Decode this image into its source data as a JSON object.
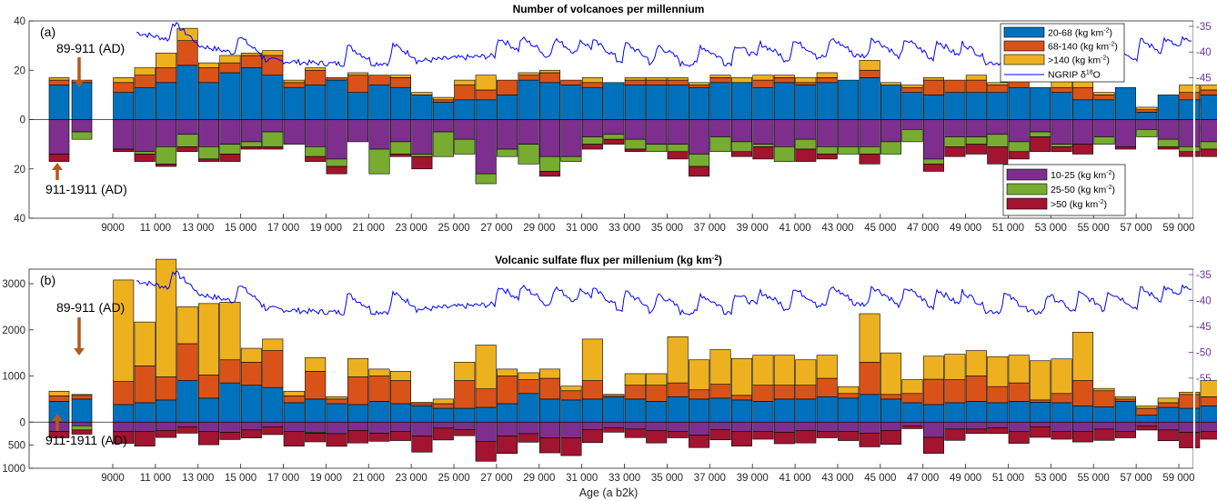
{
  "chart_data": [
    {
      "type": "bar",
      "panel": "(a)",
      "title": "Number of volcanoes per millennium",
      "xlabel": "",
      "ylabel": "",
      "ylim": [
        -40,
        40
      ],
      "ytick_labels": [
        "40",
        "20",
        "0",
        "20",
        "40"
      ],
      "ytick_values": [
        40,
        20,
        0,
        -20,
        -40
      ],
      "y2lim": [
        -55,
        -35
      ],
      "y2tick_labels": [
        "-35",
        "-40",
        "-45",
        "-50",
        "-55"
      ],
      "grid": false,
      "legend_position": "top-right",
      "legend_pos_entries": [
        "20-68 (kg km",
        "68-140 (kg km",
        ">140 (kg km"
      ],
      "legend_neg_entries": [
        "10-25 (kg km",
        "25-50 (kg km",
        ">50 (kg km"
      ],
      "legend_unit_sup": "-2",
      "legend_line_entry": "NGRIP δ",
      "legend_line_sup": "18",
      "legend_line_suffix": "O",
      "annotations": {
        "top": "89-911 (AD)",
        "bottom": "911-1911 (AD)"
      },
      "stack_positive": {
        "c0": [
          14,
          15,
          11,
          13,
          15,
          22,
          15,
          19,
          21,
          18,
          13,
          14,
          16,
          11,
          14,
          13,
          10,
          7,
          8,
          8,
          10,
          16,
          15,
          14,
          13,
          15,
          14,
          14,
          14,
          13,
          15,
          15,
          13,
          15,
          14,
          15,
          16,
          17,
          14,
          11,
          10,
          11,
          11,
          11,
          13,
          13,
          11,
          8,
          8,
          13,
          3,
          10,
          8,
          10,
          10,
          9,
          5,
          7,
          10,
          13,
          6
        ],
        "c1": [
          2,
          1,
          4,
          5,
          6,
          10,
          6,
          4,
          5,
          8,
          2,
          6,
          1,
          7,
          4,
          4,
          0,
          1,
          6,
          4,
          6,
          2,
          4,
          2,
          2,
          0,
          2,
          2,
          2,
          1,
          2,
          0,
          3,
          2,
          1,
          2,
          0,
          3,
          0,
          2,
          6,
          5,
          5,
          3,
          5,
          0,
          2,
          5,
          2,
          0,
          1,
          0,
          3,
          2,
          2,
          2,
          2,
          2,
          5,
          3,
          2
        ],
        "c2": [
          1,
          0,
          2,
          3,
          6,
          5,
          2,
          3,
          1,
          2,
          1,
          1,
          0,
          1,
          0,
          1,
          1,
          1,
          2,
          6,
          0,
          1,
          1,
          0,
          2,
          0,
          1,
          1,
          1,
          1,
          1,
          2,
          2,
          1,
          2,
          2,
          0,
          4,
          1,
          1,
          1,
          0,
          2,
          1,
          0,
          0,
          4,
          4,
          1,
          0,
          1,
          0,
          3,
          2,
          1,
          0,
          2,
          1,
          2,
          3,
          2
        ]
      },
      "stack_negative": {
        "c0": [
          14,
          5,
          12,
          13,
          11,
          6,
          11,
          10,
          9,
          5,
          10,
          11,
          16,
          9,
          12,
          9,
          14,
          5,
          8,
          22,
          12,
          10,
          15,
          15,
          7,
          6,
          8,
          10,
          10,
          14,
          7,
          9,
          10,
          11,
          8,
          11,
          11,
          11,
          9,
          4,
          16,
          7,
          7,
          6,
          9,
          5,
          10,
          10,
          7,
          11,
          4,
          8,
          11,
          9,
          4,
          7,
          9,
          7,
          9,
          6,
          7
        ],
        "c1": [
          0,
          3,
          0,
          1,
          7,
          5,
          5,
          4,
          2,
          6,
          0,
          4,
          3,
          0,
          10,
          5,
          1,
          10,
          6,
          4,
          3,
          8,
          6,
          2,
          3,
          2,
          4,
          3,
          3,
          5,
          6,
          4,
          1,
          6,
          4,
          3,
          3,
          3,
          5,
          5,
          2,
          4,
          3,
          5,
          4,
          2,
          1,
          0,
          3,
          0,
          3,
          3,
          2,
          3,
          3,
          2,
          3,
          2,
          2,
          2,
          2
        ]
      },
      "stack_negative_top": [
        3,
        0,
        1,
        3,
        1,
        2,
        1,
        3,
        1,
        1,
        0,
        2,
        3,
        0,
        0,
        1,
        5,
        0,
        0,
        0,
        0,
        0,
        2,
        0,
        2,
        2,
        1,
        0,
        3,
        4,
        0,
        2,
        5,
        0,
        5,
        2,
        0,
        4,
        0,
        0,
        3,
        4,
        4,
        7,
        3,
        6,
        2,
        4,
        0,
        1,
        0,
        1,
        2,
        3,
        3,
        3,
        1,
        0,
        5,
        3,
        3
      ],
      "groups": [
        "pre",
        "pre",
        "main"
      ],
      "x_categories_note_excluded": "",
      "xtick_labels": [
        "9000",
        "11 000",
        "13 000",
        "15 000",
        "17 000",
        "19 000",
        "21 000",
        "23 000",
        "25 000",
        "27 000",
        "29 000",
        "31 000",
        "33 000",
        "35 000",
        "37 000",
        "39 000",
        "41 000",
        "43 000",
        "45 000",
        "47 000",
        "49 000",
        "51 000",
        "53 000",
        "55 000",
        "57 000",
        "59 000"
      ]
    },
    {
      "type": "bar",
      "panel": "(b)",
      "title": "Volcanic sulfate flux per millenium (kg km",
      "title_sup": "-2",
      "title_suffix": ")",
      "xlabel": "Age (a b2k)",
      "ylabel": "",
      "ylim": [
        -1000,
        3500
      ],
      "ytick_labels": [
        "3000",
        "2000",
        "1000",
        "0",
        "500",
        "1000"
      ],
      "ytick_values": [
        3000,
        2000,
        1000,
        0,
        -500,
        -1000
      ],
      "y2lim": [
        -55,
        -35
      ],
      "y2tick_labels": [
        "-35",
        "-40",
        "-45",
        "-50",
        "-55"
      ],
      "grid": false,
      "annotations": {
        "top": "89-911 (AD)",
        "bottom": "911-1911 (AD)"
      },
      "stack_positive": {
        "c0": [
          450,
          500,
          380,
          420,
          480,
          900,
          520,
          850,
          800,
          750,
          420,
          500,
          400,
          380,
          450,
          400,
          350,
          300,
          300,
          320,
          400,
          620,
          500,
          480,
          500,
          550,
          500,
          450,
          550,
          500,
          520,
          480,
          450,
          500,
          500,
          550,
          520,
          600,
          500,
          420,
          380,
          420,
          450,
          420,
          450,
          430,
          420,
          350,
          330,
          450,
          150,
          320,
          300,
          350,
          340,
          320,
          180,
          250,
          320,
          420,
          280
        ],
        "c1": [
          120,
          80,
          500,
          800,
          500,
          800,
          500,
          500,
          500,
          800,
          150,
          600,
          100,
          600,
          550,
          500,
          50,
          100,
          600,
          400,
          600,
          300,
          450,
          200,
          400,
          50,
          300,
          350,
          300,
          200,
          300,
          100,
          350,
          300,
          300,
          400,
          100,
          700,
          100,
          200,
          550,
          500,
          550,
          350,
          400,
          50,
          200,
          550,
          350,
          50,
          150,
          100,
          300,
          200,
          250,
          200,
          200,
          250,
          450,
          400,
          200
        ],
        "c2": [
          100,
          20,
          2200,
          950,
          2550,
          800,
          1550,
          1250,
          300,
          250,
          100,
          300,
          50,
          400,
          150,
          200,
          30,
          100,
          400,
          950,
          150,
          150,
          200,
          100,
          900,
          0,
          250,
          250,
          1000,
          650,
          750,
          800,
          650,
          650,
          550,
          500,
          150,
          1050,
          900,
          300,
          500,
          550,
          550,
          650,
          600,
          850,
          750,
          1050,
          50,
          50,
          50,
          100,
          50,
          350,
          200,
          300,
          1350,
          150,
          100,
          500,
          400
        ]
      },
      "stack_negative": {
        "c0": [
          200,
          80,
          200,
          200,
          180,
          100,
          200,
          220,
          170,
          100,
          200,
          220,
          250,
          180,
          240,
          200,
          300,
          130,
          160,
          420,
          300,
          250,
          340,
          340,
          160,
          120,
          150,
          180,
          200,
          280,
          160,
          200,
          200,
          220,
          180,
          200,
          200,
          240,
          180,
          80,
          330,
          150,
          150,
          120,
          200,
          100,
          200,
          200,
          150,
          200,
          80,
          170,
          220,
          200,
          80,
          150,
          220,
          150,
          200,
          140,
          170
        ],
        "c1": [
          0,
          90,
          0,
          0,
          0,
          0,
          0,
          0,
          0,
          0,
          0,
          20,
          0,
          0,
          0,
          0,
          0,
          0,
          0,
          0,
          0,
          0,
          0,
          0,
          0,
          0,
          0,
          0,
          0,
          0,
          0,
          0,
          0,
          0,
          0,
          0,
          0,
          0,
          0,
          0,
          0,
          0,
          0,
          0,
          0,
          0,
          0,
          0,
          0,
          0,
          0,
          0,
          0,
          0,
          0,
          0,
          0,
          0,
          0,
          0,
          0
        ],
        "c1b": [
          0,
          0,
          0,
          0,
          0,
          0,
          0,
          0,
          0,
          0,
          0,
          0,
          0,
          0,
          0,
          0,
          0,
          0,
          0,
          0,
          0,
          0,
          0,
          0,
          0,
          0,
          0,
          0,
          0,
          0,
          0,
          0,
          0,
          0,
          0,
          0,
          0,
          0,
          0,
          0,
          0,
          0,
          0,
          0,
          0,
          0,
          0,
          0,
          0,
          0,
          0,
          0,
          0,
          0,
          0,
          0,
          0,
          0,
          0,
          0,
          0
        ]
      },
      "xtick_labels": [
        "9000",
        "11 000",
        "13 000",
        "15 000",
        "17 000",
        "19 000",
        "21 000",
        "23 000",
        "25 000",
        "27 000",
        "29 000",
        "31 000",
        "33 000",
        "35 000",
        "37 000",
        "39 000",
        "41 000",
        "43 000",
        "45 000",
        "47 000",
        "49 000",
        "51 000",
        "53 000",
        "55 000",
        "57 000",
        "59 000"
      ]
    }
  ],
  "colors": {
    "c0_pos": "#0072bd",
    "c1_pos": "#d95319",
    "c2_pos": "#edb120",
    "c0_neg": "#7e2f8e",
    "c1_neg": "#77ac30",
    "c2_neg": "#a2142f",
    "ngrip": "#0000ff",
    "arrow": "#b35a1f",
    "right_axis": "#7030a0"
  }
}
